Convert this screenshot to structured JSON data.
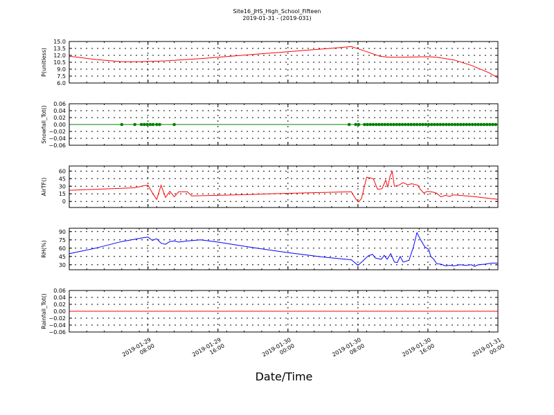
{
  "chart_data": {
    "type": "line",
    "title": "Site16_JHS_High_School_Fifteen",
    "subtitle": "2019-01-31 - (2019-031)",
    "xlabel": "Date/Time",
    "xlim": [
      "2019-01-28T23:00",
      "2019-01-31T00:00"
    ],
    "x_ticks": [
      {
        "t": "2019-01-29T08:00",
        "line1": "2019-01-29",
        "line2": "08:00"
      },
      {
        "t": "2019-01-29T16:00",
        "line1": "2019-01-29",
        "line2": "16:00"
      },
      {
        "t": "2019-01-30T00:00",
        "line1": "2019-01-30",
        "line2": "00:00"
      },
      {
        "t": "2019-01-30T08:00",
        "line1": "2019-01-30",
        "line2": "08:00"
      },
      {
        "t": "2019-01-30T16:00",
        "line1": "2019-01-30",
        "line2": "16:00"
      },
      {
        "t": "2019-01-31T00:00",
        "line1": "2019-01-31",
        "line2": "00:00"
      }
    ],
    "grid": true,
    "panels": [
      {
        "ylabel": "P(unitless)",
        "ylim": [
          6.0,
          15.0
        ],
        "yticks": [
          "6.0",
          "7.5",
          "9.0",
          "10.5",
          "12.0",
          "13.5",
          "15.0"
        ],
        "series": [
          {
            "color": "#ff0000",
            "style": "line",
            "points": [
              [
                "2019-01-28T23:00",
                11.8
              ],
              [
                "2019-01-29T02:00",
                11.1
              ],
              [
                "2019-01-29T05:00",
                10.6
              ],
              [
                "2019-01-29T07:00",
                10.6
              ],
              [
                "2019-01-29T10:00",
                10.8
              ],
              [
                "2019-01-29T14:00",
                11.3
              ],
              [
                "2019-01-29T18:00",
                11.9
              ],
              [
                "2019-01-29T22:00",
                12.5
              ],
              [
                "2019-01-30T02:00",
                13.1
              ],
              [
                "2019-01-30T06:00",
                13.7
              ],
              [
                "2019-01-30T07:15",
                13.9
              ],
              [
                "2019-01-30T09:00",
                12.8
              ],
              [
                "2019-01-30T10:30",
                11.8
              ],
              [
                "2019-01-30T11:30",
                11.6
              ],
              [
                "2019-01-30T13:00",
                11.6
              ],
              [
                "2019-01-30T16:00",
                11.7
              ],
              [
                "2019-01-30T17:00",
                11.6
              ],
              [
                "2019-01-30T19:00",
                11.0
              ],
              [
                "2019-01-30T21:00",
                9.8
              ],
              [
                "2019-01-30T23:00",
                8.2
              ],
              [
                "2019-01-31T00:00",
                7.1
              ]
            ]
          }
        ]
      },
      {
        "ylabel": "Snowfall_Tot()",
        "ylim": [
          -0.06,
          0.06
        ],
        "yticks": [
          "−0.06",
          "−0.04",
          "−0.02",
          "0.00",
          "0.02",
          "0.04",
          "0.06"
        ],
        "series": [
          {
            "color": "#008000",
            "style": "line+markers",
            "points": [
              [
                "2019-01-28T23:00",
                0
              ],
              [
                "2019-01-31T00:00",
                0
              ]
            ],
            "markers": [
              "2019-01-29T05:00",
              "2019-01-29T06:30",
              "2019-01-29T07:15",
              "2019-01-29T07:35",
              "2019-01-29T07:55",
              "2019-01-29T08:15",
              "2019-01-29T08:35",
              "2019-01-29T09:00",
              "2019-01-29T09:20",
              "2019-01-29T11:00",
              "2019-01-30T07:00",
              "2019-01-30T07:45",
              "2019-01-30T08:05",
              "2019-01-30T08:45",
              "2019-01-30T09:05",
              "2019-01-30T09:25",
              "2019-01-30T09:45",
              "2019-01-30T10:05",
              "2019-01-30T10:25",
              "2019-01-30T10:45",
              "2019-01-30T11:05",
              "2019-01-30T11:25",
              "2019-01-30T11:45",
              "2019-01-30T12:05",
              "2019-01-30T12:25",
              "2019-01-30T12:45",
              "2019-01-30T13:05",
              "2019-01-30T13:25",
              "2019-01-30T13:45",
              "2019-01-30T14:05",
              "2019-01-30T14:25",
              "2019-01-30T14:45",
              "2019-01-30T15:05",
              "2019-01-30T15:25",
              "2019-01-30T15:45",
              "2019-01-30T16:05",
              "2019-01-30T16:25",
              "2019-01-30T16:45",
              "2019-01-30T17:05",
              "2019-01-30T17:25",
              "2019-01-30T17:45",
              "2019-01-30T18:05",
              "2019-01-30T18:25",
              "2019-01-30T18:45",
              "2019-01-30T19:05",
              "2019-01-30T19:25",
              "2019-01-30T19:45",
              "2019-01-30T20:05",
              "2019-01-30T20:25",
              "2019-01-30T20:45",
              "2019-01-30T21:05",
              "2019-01-30T21:25",
              "2019-01-30T21:45",
              "2019-01-30T22:05",
              "2019-01-30T22:25",
              "2019-01-30T22:45",
              "2019-01-30T23:05",
              "2019-01-30T23:25",
              "2019-01-30T23:45"
            ]
          }
        ]
      },
      {
        "ylabel": "AirTF()",
        "ylim": [
          -12,
          70
        ],
        "yticks": [
          "0",
          "15",
          "30",
          "45",
          "60"
        ],
        "series": [
          {
            "color": "#ff0000",
            "style": "line",
            "points": [
              [
                "2019-01-28T23:00",
                22
              ],
              [
                "2019-01-29T06:30",
                27
              ],
              [
                "2019-01-29T07:30",
                31
              ],
              [
                "2019-01-29T08:00",
                32
              ],
              [
                "2019-01-29T08:30",
                17
              ],
              [
                "2019-01-29T09:00",
                4
              ],
              [
                "2019-01-29T09:30",
                32
              ],
              [
                "2019-01-29T10:00",
                8
              ],
              [
                "2019-01-29T10:30",
                20
              ],
              [
                "2019-01-29T11:00",
                9
              ],
              [
                "2019-01-29T11:30",
                19
              ],
              [
                "2019-01-29T12:30",
                19
              ],
              [
                "2019-01-29T13:00",
                11
              ],
              [
                "2019-01-29T18:00",
                13
              ],
              [
                "2019-01-30T00:00",
                16
              ],
              [
                "2019-01-30T07:15",
                19
              ],
              [
                "2019-01-30T07:45",
                5
              ],
              [
                "2019-01-30T08:05",
                -1
              ],
              [
                "2019-01-30T08:25",
                6
              ],
              [
                "2019-01-30T09:00",
                48
              ],
              [
                "2019-01-30T09:45",
                45
              ],
              [
                "2019-01-30T10:15",
                24
              ],
              [
                "2019-01-30T10:45",
                25
              ],
              [
                "2019-01-30T11:10",
                42
              ],
              [
                "2019-01-30T11:25",
                28
              ],
              [
                "2019-01-30T11:40",
                50
              ],
              [
                "2019-01-30T11:55",
                59
              ],
              [
                "2019-01-30T12:10",
                30
              ],
              [
                "2019-01-30T12:40",
                32
              ],
              [
                "2019-01-30T13:10",
                37
              ],
              [
                "2019-01-30T13:40",
                33
              ],
              [
                "2019-01-30T14:10",
                35
              ],
              [
                "2019-01-30T14:50",
                32
              ],
              [
                "2019-01-30T15:05",
                25
              ],
              [
                "2019-01-30T15:30",
                17
              ],
              [
                "2019-01-30T16:00",
                20
              ],
              [
                "2019-01-30T16:40",
                18
              ],
              [
                "2019-01-30T17:00",
                16
              ],
              [
                "2019-01-30T17:30",
                9
              ],
              [
                "2019-01-30T18:00",
                12
              ],
              [
                "2019-01-30T18:30",
                10
              ],
              [
                "2019-01-30T19:00",
                13
              ],
              [
                "2019-01-30T21:00",
                10
              ],
              [
                "2019-01-31T00:00",
                4
              ]
            ]
          }
        ]
      },
      {
        "ylabel": "RH(%)",
        "ylim": [
          21,
          96
        ],
        "yticks": [
          "30",
          "45",
          "60",
          "75",
          "90"
        ],
        "series": [
          {
            "color": "#0000ff",
            "style": "line",
            "points": [
              [
                "2019-01-28T23:00",
                50
              ],
              [
                "2019-01-29T02:00",
                60
              ],
              [
                "2019-01-29T05:00",
                72
              ],
              [
                "2019-01-29T07:30",
                79
              ],
              [
                "2019-01-29T08:00",
                80
              ],
              [
                "2019-01-29T08:30",
                74
              ],
              [
                "2019-01-29T09:00",
                77
              ],
              [
                "2019-01-29T09:30",
                69
              ],
              [
                "2019-01-29T10:00",
                67
              ],
              [
                "2019-01-29T10:30",
                72
              ],
              [
                "2019-01-29T11:00",
                73
              ],
              [
                "2019-01-29T11:30",
                71
              ],
              [
                "2019-01-29T12:30",
                73
              ],
              [
                "2019-01-29T14:00",
                75
              ],
              [
                "2019-01-29T16:00",
                71
              ],
              [
                "2019-01-29T20:00",
                61
              ],
              [
                "2019-01-30T00:00",
                52
              ],
              [
                "2019-01-30T04:00",
                44
              ],
              [
                "2019-01-30T07:15",
                39
              ],
              [
                "2019-01-30T08:00",
                29
              ],
              [
                "2019-01-30T08:30",
                36
              ],
              [
                "2019-01-30T09:10",
                46
              ],
              [
                "2019-01-30T09:40",
                49
              ],
              [
                "2019-01-30T10:00",
                42
              ],
              [
                "2019-01-30T10:40",
                40
              ],
              [
                "2019-01-30T11:00",
                47
              ],
              [
                "2019-01-30T11:20",
                40
              ],
              [
                "2019-01-30T11:45",
                50
              ],
              [
                "2019-01-30T12:10",
                35
              ],
              [
                "2019-01-30T12:30",
                34
              ],
              [
                "2019-01-30T12:50",
                45
              ],
              [
                "2019-01-30T13:10",
                35
              ],
              [
                "2019-01-30T13:50",
                38
              ],
              [
                "2019-01-30T14:20",
                62
              ],
              [
                "2019-01-30T14:45",
                88
              ],
              [
                "2019-01-30T15:10",
                75
              ],
              [
                "2019-01-30T15:40",
                62
              ],
              [
                "2019-01-30T16:05",
                58
              ],
              [
                "2019-01-30T16:20",
                45
              ],
              [
                "2019-01-30T16:40",
                40
              ],
              [
                "2019-01-30T17:00",
                32
              ],
              [
                "2019-01-30T17:30",
                31
              ],
              [
                "2019-01-30T18:00",
                28
              ],
              [
                "2019-01-30T18:30",
                29
              ],
              [
                "2019-01-30T19:00",
                28
              ],
              [
                "2019-01-30T19:40",
                30
              ],
              [
                "2019-01-30T20:20",
                29
              ],
              [
                "2019-01-30T21:00",
                30
              ],
              [
                "2019-01-30T21:20",
                27
              ],
              [
                "2019-01-30T21:45",
                30
              ],
              [
                "2019-01-30T22:30",
                31
              ],
              [
                "2019-01-30T23:15",
                33
              ],
              [
                "2019-01-31T00:00",
                33
              ]
            ]
          }
        ]
      },
      {
        "ylabel": "Rainfall_Tot()",
        "ylim": [
          -0.06,
          0.06
        ],
        "yticks": [
          "−0.06",
          "−0.04",
          "−0.02",
          "0.00",
          "0.02",
          "0.04",
          "0.06"
        ],
        "series": [
          {
            "color": "#ff0000",
            "style": "line",
            "points": [
              [
                "2019-01-28T23:00",
                0
              ],
              [
                "2019-01-31T00:00",
                0
              ]
            ]
          }
        ]
      }
    ]
  }
}
